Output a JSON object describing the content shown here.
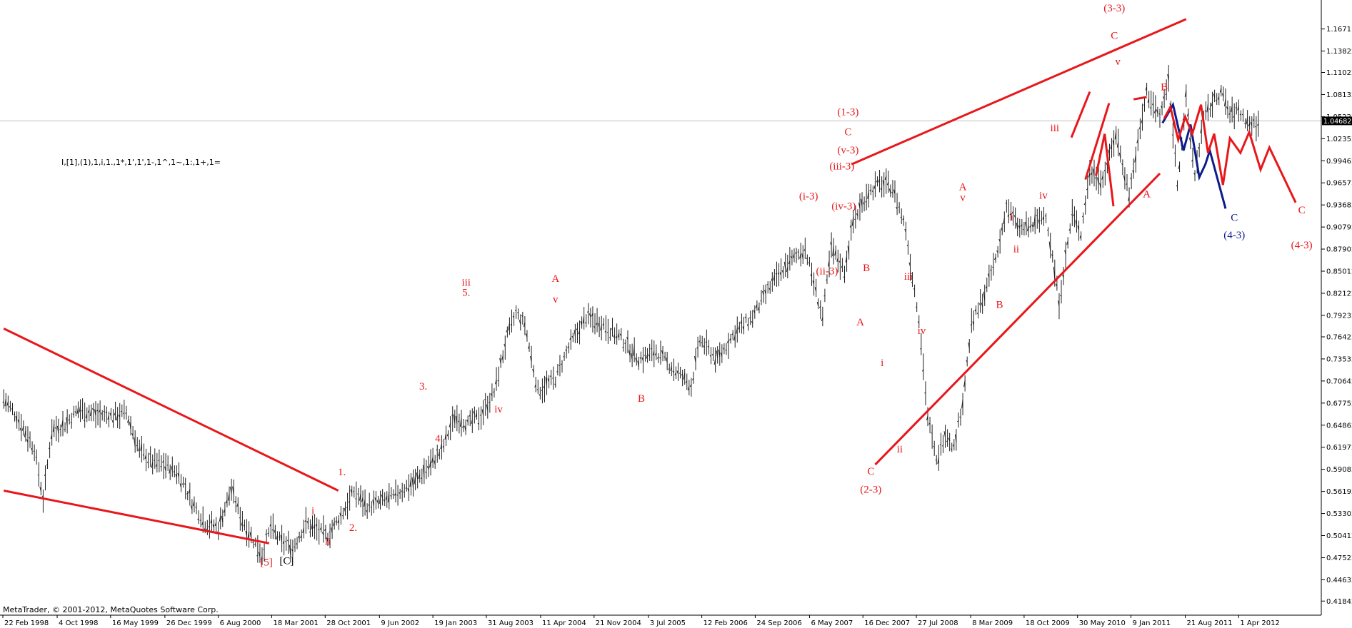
{
  "chart_data": {
    "type": "line",
    "title": "",
    "xlabel": "",
    "ylabel": "",
    "ylim": [
      0.4,
      1.205
    ],
    "grid": false,
    "legend": "none",
    "current_price": "1.04682",
    "y_ticks": [
      "1.16711",
      "1.13822",
      "1.11022",
      "1.08132",
      "1.05222",
      "1.02352",
      "0.99462",
      "0.96572",
      "0.93682",
      "0.90792",
      "0.87902",
      "0.85012",
      "0.82122",
      "0.79232",
      "0.76422",
      "0.73532",
      "0.70642",
      "0.67752",
      "0.64862",
      "0.61972",
      "0.59082",
      "0.56192",
      "0.53302",
      "0.50412",
      "0.47522",
      "0.44632",
      "0.41842"
    ],
    "x_ticks": [
      "22 Feb 1998",
      "4 Oct 1998",
      "16 May 1999",
      "26 Dec 1999",
      "6 Aug 2000",
      "18 Mar 2001",
      "28 Oct 2001",
      "9 Jun 2002",
      "19 Jan 2003",
      "31 Aug 2003",
      "11 Apr 2004",
      "21 Nov 2004",
      "3 Jul 2005",
      "12 Feb 2006",
      "24 Sep 2006",
      "6 May 2007",
      "16 Dec 2007",
      "27 Jul 2008",
      "8 Mar 2009",
      "18 Oct 2009",
      "30 May 2010",
      "9 Jan 2011",
      "21 Aug 2011",
      "1 Apr 2012"
    ],
    "x_tick_values": [
      1998.14,
      1998.76,
      1999.37,
      1999.99,
      2000.6,
      2001.21,
      2001.82,
      2002.44,
      2003.05,
      2003.66,
      2004.28,
      2004.89,
      2005.51,
      2006.12,
      2006.73,
      2007.35,
      2007.96,
      2008.57,
      2009.19,
      2009.8,
      2010.41,
      2011.02,
      2011.64,
      2012.25
    ],
    "xlim": [
      1998.14,
      2013.03
    ],
    "series": [
      {
        "x": [
          1998.15,
          1998.3,
          1998.5,
          1998.6,
          1998.7,
          1998.85,
          1999.0,
          1999.2,
          1999.4,
          1999.55,
          1999.7,
          1999.85,
          2000.0,
          2000.15,
          2000.3,
          2000.45,
          2000.6,
          2000.75,
          2000.85,
          2001.0,
          2001.1,
          2001.2,
          2001.3,
          2001.45,
          2001.6,
          2001.75,
          2001.85,
          2002.0,
          2002.15,
          2002.3,
          2002.45,
          2002.6,
          2002.75,
          2002.85,
          2003.0,
          2003.15,
          2003.3,
          2003.45,
          2003.6,
          2003.75,
          2003.9,
          2004.0,
          2004.1,
          2004.25,
          2004.45,
          2004.6,
          2004.8,
          2005.0,
          2005.2,
          2005.4,
          2005.6,
          2005.8,
          2006.0,
          2006.1,
          2006.3,
          2006.5,
          2006.7,
          2006.9,
          2007.1,
          2007.3,
          2007.5,
          2007.6,
          2007.75,
          2007.85,
          2008.0,
          2008.15,
          2008.3,
          2008.45,
          2008.5,
          2008.6,
          2008.7,
          2008.8,
          2008.9,
          2009.0,
          2009.1,
          2009.2,
          2009.35,
          2009.5,
          2009.6,
          2009.75,
          2009.9,
          2010.05,
          2010.2,
          2010.35,
          2010.45,
          2010.55,
          2010.7,
          2010.85,
          2011.0,
          2011.2,
          2011.35,
          2011.45,
          2011.55,
          2011.65,
          2011.75,
          2011.85,
          2011.95,
          2012.05,
          2012.15,
          2012.25,
          2012.35,
          2012.5
        ],
        "y": [
          0.683,
          0.66,
          0.618,
          0.552,
          0.642,
          0.65,
          0.669,
          0.663,
          0.661,
          0.665,
          0.615,
          0.6,
          0.596,
          0.585,
          0.548,
          0.52,
          0.515,
          0.565,
          0.53,
          0.498,
          0.48,
          0.515,
          0.498,
          0.488,
          0.52,
          0.51,
          0.504,
          0.53,
          0.562,
          0.542,
          0.548,
          0.555,
          0.568,
          0.575,
          0.595,
          0.615,
          0.66,
          0.65,
          0.662,
          0.692,
          0.765,
          0.795,
          0.78,
          0.693,
          0.71,
          0.75,
          0.79,
          0.78,
          0.762,
          0.735,
          0.745,
          0.722,
          0.7,
          0.76,
          0.735,
          0.77,
          0.79,
          0.83,
          0.86,
          0.88,
          0.79,
          0.88,
          0.85,
          0.915,
          0.95,
          0.965,
          0.96,
          0.905,
          0.86,
          0.79,
          0.66,
          0.6,
          0.64,
          0.62,
          0.68,
          0.78,
          0.82,
          0.875,
          0.935,
          0.905,
          0.91,
          0.925,
          0.81,
          0.925,
          0.9,
          0.98,
          0.97,
          1.03,
          0.95,
          1.085,
          1.05,
          1.1,
          0.965,
          1.075,
          0.975,
          1.05,
          1.07,
          1.085,
          1.055,
          1.06,
          1.045,
          1.04
        ]
      }
    ],
    "lines": [
      {
        "name": "upper-trendline-left",
        "x": [
          1998.15,
          2001.97
        ],
        "y": [
          0.775,
          0.563
        ],
        "color": "#e8171b"
      },
      {
        "name": "lower-trendline-left",
        "x": [
          1998.15,
          2001.18
        ],
        "y": [
          0.563,
          0.494
        ],
        "color": "#e8171b"
      },
      {
        "name": "upper-channel",
        "x": [
          2007.83,
          2011.65
        ],
        "y": [
          0.99,
          1.18
        ],
        "color": "#e8171b"
      },
      {
        "name": "lower-channel",
        "x": [
          2008.1,
          2011.35
        ],
        "y": [
          0.597,
          0.978
        ],
        "color": "#e8171b"
      },
      {
        "name": "wedge-line-1",
        "x": [
          2010.34,
          2010.55
        ],
        "y": [
          1.025,
          1.085
        ],
        "color": "#e8171b"
      },
      {
        "name": "wedge-line-2",
        "x": [
          2010.5,
          2010.77
        ],
        "y": [
          0.97,
          1.07
        ],
        "color": "#e8171b"
      },
      {
        "name": "wedge-line-3",
        "x": [
          2010.62,
          2010.72
        ],
        "y": [
          0.975,
          1.03
        ],
        "color": "#e8171b"
      },
      {
        "name": "wedge-line-4",
        "x": [
          2010.72,
          2010.82
        ],
        "y": [
          1.03,
          0.935
        ],
        "color": "#e8171b"
      },
      {
        "name": "wedge-line-5",
        "x": [
          2011.05,
          2011.2
        ],
        "y": [
          1.075,
          1.078
        ],
        "color": "#e8171b"
      },
      {
        "name": "projection-blue",
        "x": [
          2011.38,
          2011.5,
          2011.62,
          2011.7,
          2011.8,
          2011.87,
          2011.92,
          2012.1
        ],
        "y": [
          1.044,
          1.068,
          1.008,
          1.042,
          0.973,
          0.99,
          1.008,
          0.932
        ],
        "color": "#0d1c8c"
      },
      {
        "name": "projection-red",
        "x": [
          2011.4,
          2011.47,
          2011.56,
          2011.64,
          2011.72,
          2011.82,
          2011.9,
          2011.97,
          2012.07,
          2012.15,
          2012.27,
          2012.37,
          2012.5,
          2012.6,
          2012.75,
          2012.9
        ],
        "y": [
          1.05,
          1.065,
          1.022,
          1.052,
          1.03,
          1.068,
          1.005,
          1.03,
          0.963,
          1.024,
          1.005,
          1.032,
          0.983,
          1.012,
          0.976,
          0.94
        ],
        "color": "#e8171b"
      }
    ],
    "annotations": [
      {
        "text": "[5]",
        "x": 2001.15,
        "y": 0.465,
        "color": "red"
      },
      {
        "text": "[C]",
        "x": 2001.38,
        "y": 0.467,
        "color": "black"
      },
      {
        "text": "1.",
        "x": 2002.01,
        "y": 0.583,
        "color": "red"
      },
      {
        "text": "2.",
        "x": 2002.14,
        "y": 0.51,
        "color": "red"
      },
      {
        "text": "i",
        "x": 2001.68,
        "y": 0.532,
        "color": "red"
      },
      {
        "text": "ii",
        "x": 2001.85,
        "y": 0.492,
        "color": "red"
      },
      {
        "text": "3.",
        "x": 2002.94,
        "y": 0.695,
        "color": "red"
      },
      {
        "text": "4.",
        "x": 2003.12,
        "y": 0.627,
        "color": "red"
      },
      {
        "text": "iii",
        "x": 2003.43,
        "y": 0.831,
        "color": "red"
      },
      {
        "text": "5.",
        "x": 2003.43,
        "y": 0.818,
        "color": "red"
      },
      {
        "text": "iv",
        "x": 2003.8,
        "y": 0.665,
        "color": "red"
      },
      {
        "text": "A",
        "x": 2004.45,
        "y": 0.836,
        "color": "red"
      },
      {
        "text": "v",
        "x": 2004.45,
        "y": 0.809,
        "color": "red"
      },
      {
        "text": "B",
        "x": 2005.43,
        "y": 0.679,
        "color": "red"
      },
      {
        "text": "(i-3)",
        "x": 2007.34,
        "y": 0.944,
        "color": "red"
      },
      {
        "text": "(ii-3)",
        "x": 2007.55,
        "y": 0.846,
        "color": "red"
      },
      {
        "text": "(iii-3)",
        "x": 2007.72,
        "y": 0.983,
        "color": "red"
      },
      {
        "text": "(iv-3)",
        "x": 2007.74,
        "y": 0.931,
        "color": "red"
      },
      {
        "text": "(v-3)",
        "x": 2007.79,
        "y": 1.004,
        "color": "red"
      },
      {
        "text": "C",
        "x": 2007.79,
        "y": 1.028,
        "color": "red"
      },
      {
        "text": "(1-3)",
        "x": 2007.79,
        "y": 1.054,
        "color": "red"
      },
      {
        "text": "B",
        "x": 2008.0,
        "y": 0.85,
        "color": "red"
      },
      {
        "text": "A",
        "x": 2007.93,
        "y": 0.779,
        "color": "red"
      },
      {
        "text": "i",
        "x": 2008.18,
        "y": 0.726,
        "color": "red"
      },
      {
        "text": "C",
        "x": 2008.05,
        "y": 0.584,
        "color": "red"
      },
      {
        "text": "ii",
        "x": 2008.38,
        "y": 0.613,
        "color": "red"
      },
      {
        "text": "(2-3)",
        "x": 2008.05,
        "y": 0.56,
        "color": "red"
      },
      {
        "text": "iii",
        "x": 2008.48,
        "y": 0.839,
        "color": "red"
      },
      {
        "text": "iv",
        "x": 2008.63,
        "y": 0.768,
        "color": "red"
      },
      {
        "text": "A",
        "x": 2009.1,
        "y": 0.956,
        "color": "red"
      },
      {
        "text": "v",
        "x": 2009.1,
        "y": 0.942,
        "color": "red"
      },
      {
        "text": "B",
        "x": 2009.52,
        "y": 0.802,
        "color": "red"
      },
      {
        "text": "i",
        "x": 2009.66,
        "y": 0.917,
        "color": "red"
      },
      {
        "text": "ii",
        "x": 2009.71,
        "y": 0.875,
        "color": "red"
      },
      {
        "text": "iii",
        "x": 2010.15,
        "y": 1.033,
        "color": "red"
      },
      {
        "text": "iv",
        "x": 2010.02,
        "y": 0.945,
        "color": "red"
      },
      {
        "text": "v",
        "x": 2010.87,
        "y": 1.12,
        "color": "red"
      },
      {
        "text": "C",
        "x": 2010.83,
        "y": 1.154,
        "color": "red"
      },
      {
        "text": "(3-3)",
        "x": 2010.83,
        "y": 1.19,
        "color": "red"
      },
      {
        "text": "B",
        "x": 2011.4,
        "y": 1.087,
        "color": "red"
      },
      {
        "text": "A",
        "x": 2011.2,
        "y": 0.947,
        "color": "red"
      },
      {
        "text": "C",
        "x": 2012.2,
        "y": 0.916,
        "color": "blue"
      },
      {
        "text": "(4-3)",
        "x": 2012.2,
        "y": 0.893,
        "color": "blue"
      },
      {
        "text": "C",
        "x": 2012.97,
        "y": 0.926,
        "color": "red"
      },
      {
        "text": "(4-3)",
        "x": 2012.97,
        "y": 0.88,
        "color": "red"
      }
    ]
  },
  "symbols_line": "I,[1],(1),1,i,1.,1*,1',1',1-,1^,1~,1:,1+,1=",
  "copyright": "MetaTrader, © 2001-2012, MetaQuotes Software Corp."
}
